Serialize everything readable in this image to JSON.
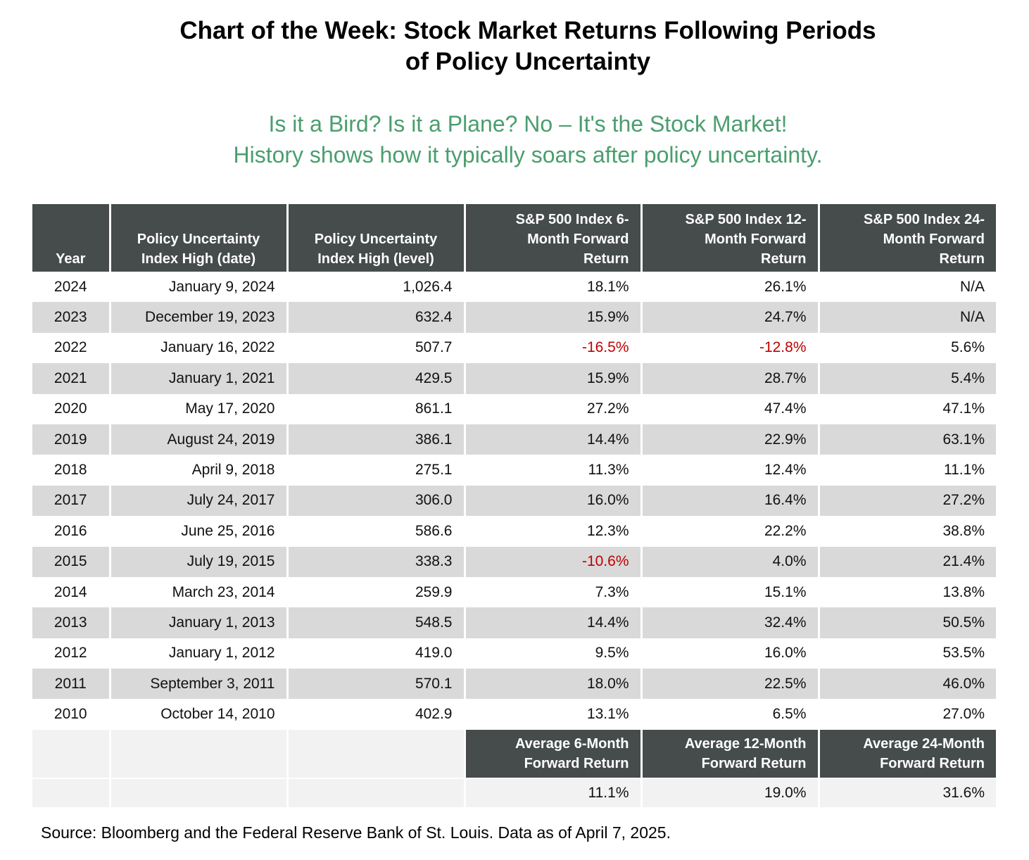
{
  "title_line1": "Chart of the Week: Stock Market Returns Following Periods",
  "title_line2": "of Policy Uncertainty",
  "subtitle_line1": "Is it a Bird? Is it a Plane? No – It's the Stock Market!",
  "subtitle_line2": "History shows how it typically soars after policy uncertainty.",
  "chart_data": {
    "type": "table",
    "columns": [
      "Year",
      "Policy Uncertainty Index High (date)",
      "Policy Uncertainty Index High (level)",
      "S&P 500 Index 6-Month Forward Return",
      "S&P 500 Index 12-Month Forward Return",
      "S&P 500 Index 24-Month Forward Return"
    ],
    "header_lines": [
      [
        "Year"
      ],
      [
        "Policy Uncertainty",
        "Index High (date)"
      ],
      [
        "Policy Uncertainty",
        "Index High (level)"
      ],
      [
        "S&P 500 Index 6-",
        "Month Forward",
        "Return"
      ],
      [
        "S&P 500 Index 12-",
        "Month Forward",
        "Return"
      ],
      [
        "S&P 500 Index 24-",
        "Month Forward",
        "Return"
      ]
    ],
    "rows": [
      [
        "2024",
        "January 9, 2024",
        "1,026.4",
        "18.1%",
        "26.1%",
        "N/A"
      ],
      [
        "2023",
        "December 19, 2023",
        "632.4",
        "15.9%",
        "24.7%",
        "N/A"
      ],
      [
        "2022",
        "January 16, 2022",
        "507.7",
        "-16.5%",
        "-12.8%",
        "5.6%"
      ],
      [
        "2021",
        "January 1, 2021",
        "429.5",
        "15.9%",
        "28.7%",
        "5.4%"
      ],
      [
        "2020",
        "May 17, 2020",
        "861.1",
        "27.2%",
        "47.4%",
        "47.1%"
      ],
      [
        "2019",
        "August 24, 2019",
        "386.1",
        "14.4%",
        "22.9%",
        "63.1%"
      ],
      [
        "2018",
        "April 9, 2018",
        "275.1",
        "11.3%",
        "12.4%",
        "11.1%"
      ],
      [
        "2017",
        "July 24, 2017",
        "306.0",
        "16.0%",
        "16.4%",
        "27.2%"
      ],
      [
        "2016",
        "June 25, 2016",
        "586.6",
        "12.3%",
        "22.2%",
        "38.8%"
      ],
      [
        "2015",
        "July 19, 2015",
        "338.3",
        "-10.6%",
        "4.0%",
        "21.4%"
      ],
      [
        "2014",
        "March 23, 2014",
        "259.9",
        "7.3%",
        "15.1%",
        "13.8%"
      ],
      [
        "2013",
        "January 1, 2013",
        "548.5",
        "14.4%",
        "32.4%",
        "50.5%"
      ],
      [
        "2012",
        "January 1, 2012",
        "419.0",
        "9.5%",
        "16.0%",
        "53.5%"
      ],
      [
        "2011",
        "September 3, 2011",
        "570.1",
        "18.0%",
        "22.5%",
        "46.0%"
      ],
      [
        "2010",
        "October 14, 2010",
        "402.9",
        "13.1%",
        "6.5%",
        "27.0%"
      ]
    ],
    "averages": {
      "labels": [
        [
          "Average 6-Month",
          "Forward Return"
        ],
        [
          "Average 12-Month",
          "Forward Return"
        ],
        [
          "Average 24-Month",
          "Forward Return"
        ]
      ],
      "values": [
        "11.1%",
        "19.0%",
        "31.6%"
      ]
    }
  },
  "source": "Source: Bloomberg and the Federal Reserve Bank of St. Louis. Data as of April 7, 2025.",
  "colors": {
    "header_bg": "#454c4b",
    "row_shade": "#d9d9d9",
    "subtitle": "#4a9e6e",
    "negative": "#c00000"
  }
}
